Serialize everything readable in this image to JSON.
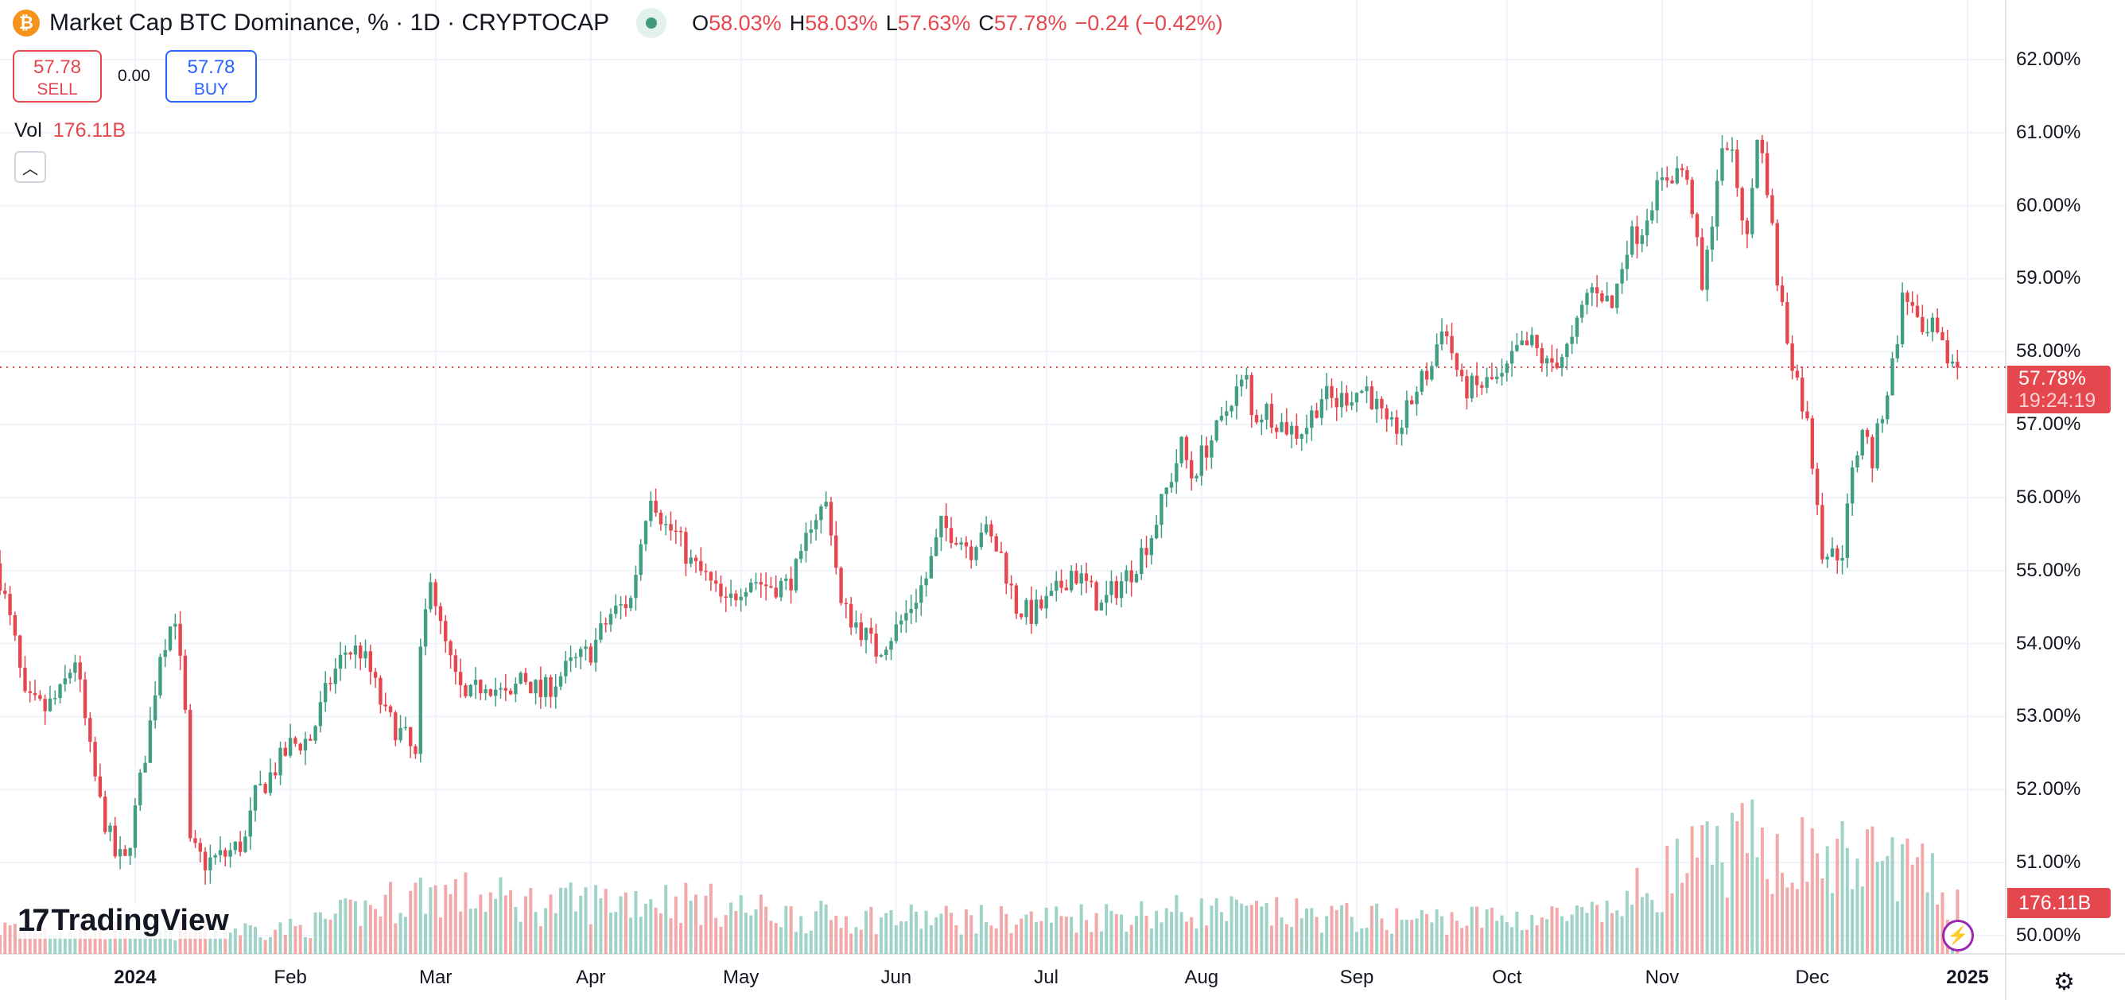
{
  "header": {
    "title": "Market Cap BTC Dominance, % · 1D · CRYPTOCAP",
    "coin_icon": "bitcoin-icon",
    "ohlc": {
      "o_label": "O",
      "o": "58.03%",
      "h_label": "H",
      "h": "58.03%",
      "l_label": "L",
      "l": "57.63%",
      "c_label": "C",
      "c": "57.78%",
      "change": "−0.24 (−0.42%)"
    }
  },
  "trade": {
    "sell_price": "57.78",
    "sell_label": "SELL",
    "spread": "0.00",
    "buy_price": "57.78",
    "buy_label": "BUY"
  },
  "volume": {
    "label": "Vol",
    "value": "176.11B"
  },
  "price_tag": {
    "price": "57.78%",
    "countdown": "19:24:19"
  },
  "volume_tag": "176.11B",
  "logo": "TradingView",
  "colors": {
    "up": "#419e84",
    "down": "#e5474f",
    "up_vol": "#9fd3c7",
    "down_vol": "#f2a9a9"
  },
  "chart_data": {
    "type": "candlestick",
    "title": "Market Cap BTC Dominance, %",
    "interval": "1D",
    "start_date": "2023-12-05",
    "num_candles": 392,
    "ylim": [
      49.7,
      62.5
    ],
    "yticks": [
      "62.00%",
      "61.00%",
      "60.00%",
      "59.00%",
      "58.00%",
      "57.00%",
      "56.00%",
      "55.00%",
      "54.00%",
      "53.00%",
      "52.00%",
      "51.00%",
      "50.00%"
    ],
    "ytick_values": [
      62,
      61,
      60,
      59,
      58,
      57,
      56,
      55,
      54,
      53,
      52,
      51,
      50
    ],
    "xticks": [
      {
        "label": "2024",
        "index": 27,
        "year": true
      },
      {
        "label": "Feb",
        "index": 58
      },
      {
        "label": "Mar",
        "index": 87
      },
      {
        "label": "Apr",
        "index": 118
      },
      {
        "label": "May",
        "index": 148
      },
      {
        "label": "Jun",
        "index": 179
      },
      {
        "label": "Jul",
        "index": 209
      },
      {
        "label": "Aug",
        "index": 240
      },
      {
        "label": "Sep",
        "index": 271
      },
      {
        "label": "Oct",
        "index": 301
      },
      {
        "label": "Nov",
        "index": 332
      },
      {
        "label": "Dec",
        "index": 362
      },
      {
        "label": "2025",
        "index": 393,
        "year": true
      }
    ],
    "last_price": 57.78,
    "close_anchors": [
      [
        0,
        54.9
      ],
      [
        3,
        54.0
      ],
      [
        5,
        53.2
      ],
      [
        9,
        53.1
      ],
      [
        12,
        53.3
      ],
      [
        15,
        53.8
      ],
      [
        18,
        52.5
      ],
      [
        20,
        51.8
      ],
      [
        23,
        51.1
      ],
      [
        25,
        51.0
      ],
      [
        27,
        51.7
      ],
      [
        30,
        52.9
      ],
      [
        32,
        53.9
      ],
      [
        35,
        54.4
      ],
      [
        37,
        53.0
      ],
      [
        38,
        51.2
      ],
      [
        41,
        51.0
      ],
      [
        45,
        51.1
      ],
      [
        49,
        51.3
      ],
      [
        51,
        51.9
      ],
      [
        54,
        52.2
      ],
      [
        58,
        52.6
      ],
      [
        62,
        52.7
      ],
      [
        66,
        53.5
      ],
      [
        69,
        53.9
      ],
      [
        72,
        53.9
      ],
      [
        74,
        53.6
      ],
      [
        77,
        53.0
      ],
      [
        81,
        52.7
      ],
      [
        83,
        52.4
      ],
      [
        84,
        53.8
      ],
      [
        86,
        55.0
      ],
      [
        88,
        54.2
      ],
      [
        91,
        53.5
      ],
      [
        93,
        53.2
      ],
      [
        97,
        53.5
      ],
      [
        102,
        53.2
      ],
      [
        104,
        53.6
      ],
      [
        108,
        53.3
      ],
      [
        114,
        53.7
      ],
      [
        118,
        53.9
      ],
      [
        122,
        54.4
      ],
      [
        126,
        54.6
      ],
      [
        129,
        55.8
      ],
      [
        130,
        56.1
      ],
      [
        133,
        55.6
      ],
      [
        135,
        55.5
      ],
      [
        138,
        55.1
      ],
      [
        141,
        54.9
      ],
      [
        145,
        54.5
      ],
      [
        148,
        54.8
      ],
      [
        150,
        54.9
      ],
      [
        153,
        54.8
      ],
      [
        157,
        54.8
      ],
      [
        160,
        55.1
      ],
      [
        162,
        55.7
      ],
      [
        165,
        55.9
      ],
      [
        166,
        55.6
      ],
      [
        168,
        54.5
      ],
      [
        172,
        54.2
      ],
      [
        175,
        53.9
      ],
      [
        179,
        54.2
      ],
      [
        181,
        54.4
      ],
      [
        185,
        54.9
      ],
      [
        188,
        55.6
      ],
      [
        191,
        55.5
      ],
      [
        194,
        55.3
      ],
      [
        196,
        55.6
      ],
      [
        200,
        55.2
      ],
      [
        203,
        54.5
      ],
      [
        206,
        54.4
      ],
      [
        210,
        54.6
      ],
      [
        214,
        55.0
      ],
      [
        217,
        54.8
      ],
      [
        220,
        54.5
      ],
      [
        222,
        54.7
      ],
      [
        226,
        55.0
      ],
      [
        230,
        55.5
      ],
      [
        233,
        56.1
      ],
      [
        236,
        56.7
      ],
      [
        238,
        56.3
      ],
      [
        241,
        56.7
      ],
      [
        244,
        57.0
      ],
      [
        246,
        57.4
      ],
      [
        249,
        57.6
      ],
      [
        250,
        57.1
      ],
      [
        253,
        57.2
      ],
      [
        256,
        57.0
      ],
      [
        259,
        56.9
      ],
      [
        261,
        57.0
      ],
      [
        264,
        57.4
      ],
      [
        267,
        57.3
      ],
      [
        269,
        57.4
      ],
      [
        273,
        57.5
      ],
      [
        276,
        57.1
      ],
      [
        277,
        56.9
      ],
      [
        280,
        57.0
      ],
      [
        283,
        57.5
      ],
      [
        286,
        57.8
      ],
      [
        288,
        58.4
      ],
      [
        290,
        58.0
      ],
      [
        292,
        57.5
      ],
      [
        295,
        57.5
      ],
      [
        298,
        57.6
      ],
      [
        300,
        57.6
      ],
      [
        303,
        58.0
      ],
      [
        306,
        58.1
      ],
      [
        309,
        57.8
      ],
      [
        311,
        57.9
      ],
      [
        314,
        58.1
      ],
      [
        317,
        58.8
      ],
      [
        319,
        58.9
      ],
      [
        322,
        58.6
      ],
      [
        325,
        59.5
      ],
      [
        328,
        59.7
      ],
      [
        330,
        60.1
      ],
      [
        333,
        60.4
      ],
      [
        336,
        60.5
      ],
      [
        338,
        60.0
      ],
      [
        340,
        58.8
      ],
      [
        341,
        59.3
      ],
      [
        343,
        60.4
      ],
      [
        345,
        60.9
      ],
      [
        347,
        60.3
      ],
      [
        349,
        59.5
      ],
      [
        351,
        61.0
      ],
      [
        353,
        60.3
      ],
      [
        355,
        59.0
      ],
      [
        357,
        58.2
      ],
      [
        359,
        57.6
      ],
      [
        361,
        57.0
      ],
      [
        363,
        56.0
      ],
      [
        364,
        55.3
      ],
      [
        366,
        55.2
      ],
      [
        368,
        55.3
      ],
      [
        370,
        56.3
      ],
      [
        372,
        57.0
      ],
      [
        374,
        56.5
      ],
      [
        376,
        57.2
      ],
      [
        378,
        57.8
      ],
      [
        380,
        58.7
      ],
      [
        382,
        58.7
      ],
      [
        384,
        58.1
      ],
      [
        386,
        58.3
      ],
      [
        388,
        58.0
      ],
      [
        391,
        57.78
      ]
    ],
    "volume_unit": "B",
    "volume_anchors": [
      [
        0,
        90
      ],
      [
        30,
        80
      ],
      [
        60,
        90
      ],
      [
        85,
        220
      ],
      [
        110,
        170
      ],
      [
        130,
        200
      ],
      [
        160,
        130
      ],
      [
        200,
        120
      ],
      [
        240,
        150
      ],
      [
        280,
        120
      ],
      [
        320,
        130
      ],
      [
        335,
        300
      ],
      [
        350,
        380
      ],
      [
        365,
        330
      ],
      [
        380,
        330
      ],
      [
        391,
        176.11
      ]
    ]
  }
}
